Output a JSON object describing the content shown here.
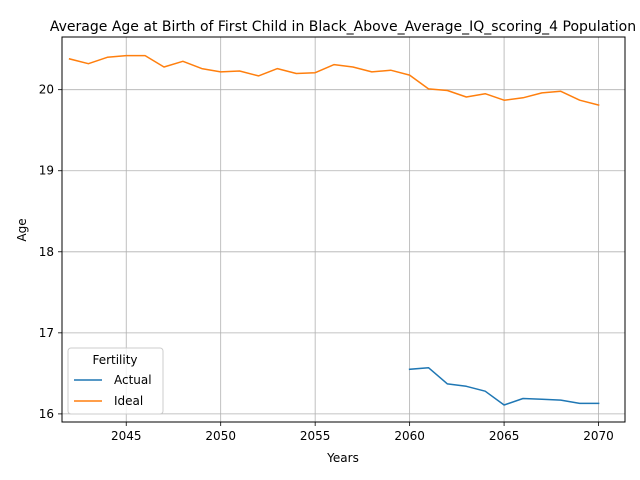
{
  "chart_data": {
    "type": "line",
    "title": "Average Age at Birth of First Child in Black_Above_Average_IQ_scoring_4 Population",
    "xlabel": "Years",
    "ylabel": "Age",
    "xlim": [
      2041.6,
      2071.4
    ],
    "ylim": [
      15.9,
      20.65
    ],
    "xticks": [
      2045,
      2050,
      2055,
      2060,
      2065,
      2070
    ],
    "yticks": [
      16,
      17,
      18,
      19,
      20
    ],
    "grid": true,
    "legend": {
      "title": "Fertility",
      "position": "lower-left"
    },
    "series": [
      {
        "name": "Actual",
        "color": "#1f77b4",
        "x": [
          2060,
          2061,
          2062,
          2063,
          2064,
          2065,
          2066,
          2067,
          2068,
          2069,
          2070
        ],
        "y": [
          16.55,
          16.57,
          16.37,
          16.34,
          16.28,
          16.11,
          16.19,
          16.18,
          16.17,
          16.13,
          16.13
        ]
      },
      {
        "name": "Ideal",
        "color": "#ff7f0e",
        "x": [
          2042,
          2043,
          2044,
          2045,
          2046,
          2047,
          2048,
          2049,
          2050,
          2051,
          2052,
          2053,
          2054,
          2055,
          2056,
          2057,
          2058,
          2059,
          2060,
          2061,
          2062,
          2063,
          2064,
          2065,
          2066,
          2067,
          2068,
          2069,
          2070
        ],
        "y": [
          20.38,
          20.32,
          20.4,
          20.42,
          20.42,
          20.28,
          20.35,
          20.26,
          20.22,
          20.23,
          20.17,
          20.26,
          20.2,
          20.21,
          20.31,
          20.28,
          20.22,
          20.24,
          20.18,
          20.01,
          19.99,
          19.91,
          19.95,
          19.87,
          19.9,
          19.96,
          19.98,
          19.87,
          19.81
        ]
      }
    ]
  }
}
